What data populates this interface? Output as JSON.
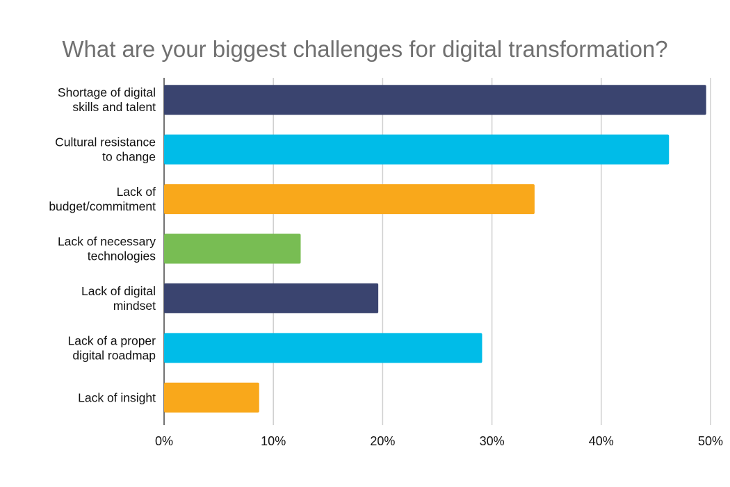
{
  "chart_data": {
    "type": "bar",
    "orientation": "horizontal",
    "title": "What are your biggest challenges for digital transformation?",
    "categories": [
      [
        "Shortage of digital",
        "skills and talent"
      ],
      [
        "Cultural resistance",
        "to change"
      ],
      [
        "Lack of",
        "budget/commitment"
      ],
      [
        "Lack of necessary",
        "technologies"
      ],
      [
        "Lack of digital",
        "mindset"
      ],
      [
        "Lack of a proper",
        "digital roadmap"
      ],
      [
        "Lack of insight"
      ]
    ],
    "values": [
      49.6,
      46.2,
      33.9,
      12.5,
      19.6,
      29.1,
      8.7
    ],
    "colors": [
      "#3a446f",
      "#00bce8",
      "#f9a81b",
      "#78bd53",
      "#3a446f",
      "#00bce8",
      "#f9a81b"
    ],
    "xlim": [
      0,
      50
    ],
    "xticks": [
      "0%",
      "10%",
      "20%",
      "30%",
      "40%",
      "50%"
    ],
    "xlabel": "",
    "ylabel": "",
    "grid": "vertical",
    "legend": "none"
  }
}
